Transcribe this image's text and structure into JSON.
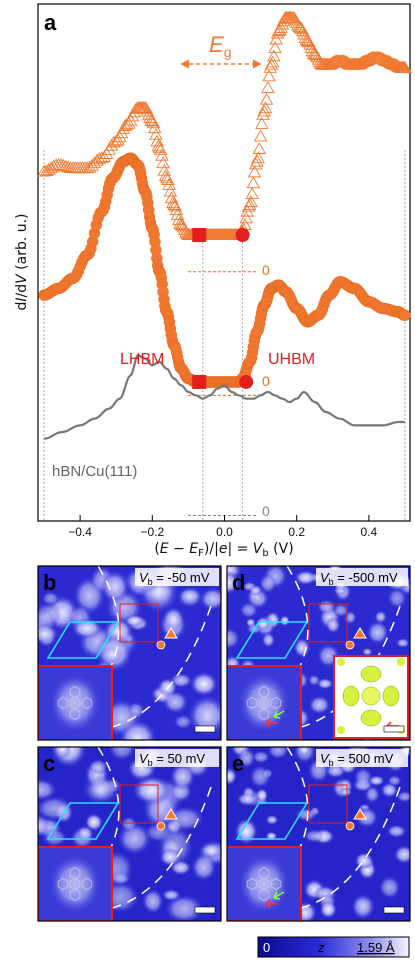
{
  "panel_letters": {
    "a": "a",
    "b": "b",
    "c": "c",
    "d": "d",
    "e": "e"
  },
  "chart_data": {
    "type": "line",
    "xlabel_parts": {
      "open": "(",
      "E": "E",
      "minus": " − ",
      "Ef": "E",
      "Ef_sub": "F",
      "mid": ")/|",
      "e": "e",
      "mid2": "| = ",
      "V": "V",
      "V_sub": "b",
      "unit": " (V)"
    },
    "ylabel_parts": {
      "d": "d",
      "I": "I",
      "slash": "/d",
      "V": "V",
      "rest": " (arb. u.)"
    },
    "xlim": [
      -0.52,
      0.52
    ],
    "x_ticks": [
      -0.4,
      -0.2,
      0.0,
      0.2,
      0.4
    ],
    "x_tick_labels": [
      "−0.4",
      "−0.2",
      "0.0",
      "0.2",
      "0.4"
    ],
    "gap_label": {
      "E": "E",
      "sub": "g"
    },
    "annotations": {
      "lhbm": "LHBM",
      "uhbm": "UHBM",
      "zero": "0"
    },
    "substrate_label": "hBN/Cu(111)",
    "vline_x": [
      -0.5,
      -0.06,
      0.05,
      0.5
    ],
    "series": [
      {
        "marker": "triangle",
        "color": "#f07830",
        "x": [
          -0.5,
          -0.46,
          -0.42,
          -0.38,
          -0.34,
          -0.3,
          -0.27,
          -0.24,
          -0.22,
          -0.2,
          -0.18,
          -0.16,
          -0.14,
          -0.12,
          -0.1,
          -0.08,
          -0.06,
          -0.04,
          -0.02,
          0.0,
          0.02,
          0.04,
          0.05,
          0.07,
          0.09,
          0.11,
          0.13,
          0.15,
          0.17,
          0.19,
          0.21,
          0.23,
          0.25,
          0.27,
          0.29,
          0.31,
          0.33,
          0.35,
          0.37,
          0.39,
          0.41,
          0.43,
          0.45,
          0.47,
          0.49,
          0.5
        ],
        "y": [
          0.52,
          0.54,
          0.53,
          0.53,
          0.56,
          0.61,
          0.66,
          0.71,
          0.71,
          0.67,
          0.59,
          0.5,
          0.42,
          0.36,
          0.33,
          0.33,
          0.33,
          0.33,
          0.33,
          0.33,
          0.33,
          0.33,
          0.34,
          0.42,
          0.55,
          0.7,
          0.84,
          0.94,
          0.98,
          0.98,
          0.95,
          0.91,
          0.87,
          0.84,
          0.84,
          0.85,
          0.85,
          0.84,
          0.84,
          0.85,
          0.86,
          0.86,
          0.85,
          0.84,
          0.83,
          0.83
        ]
      },
      {
        "marker": "circle",
        "color": "#f07830",
        "x": [
          -0.5,
          -0.46,
          -0.42,
          -0.38,
          -0.34,
          -0.31,
          -0.28,
          -0.26,
          -0.24,
          -0.22,
          -0.2,
          -0.18,
          -0.16,
          -0.14,
          -0.12,
          -0.1,
          -0.08,
          -0.06,
          -0.04,
          -0.02,
          0.0,
          0.02,
          0.04,
          0.05,
          0.07,
          0.09,
          0.11,
          0.13,
          0.15,
          0.17,
          0.2,
          0.23,
          0.26,
          0.29,
          0.32,
          0.36,
          0.4,
          0.44,
          0.48,
          0.5
        ],
        "y": [
          0.15,
          0.17,
          0.2,
          0.27,
          0.4,
          0.5,
          0.55,
          0.56,
          0.54,
          0.46,
          0.35,
          0.22,
          0.1,
          0.0,
          -0.07,
          -0.1,
          -0.11,
          -0.11,
          -0.11,
          -0.11,
          -0.11,
          -0.11,
          -0.11,
          -0.1,
          -0.05,
          0.04,
          0.12,
          0.17,
          0.18,
          0.16,
          0.11,
          0.07,
          0.09,
          0.15,
          0.19,
          0.17,
          0.13,
          0.11,
          0.1,
          0.09
        ]
      },
      {
        "marker": "line",
        "color": "#777777",
        "x": [
          -0.5,
          -0.45,
          -0.4,
          -0.36,
          -0.32,
          -0.29,
          -0.26,
          -0.24,
          -0.22,
          -0.2,
          -0.18,
          -0.16,
          -0.14,
          -0.12,
          -0.1,
          -0.08,
          -0.06,
          -0.04,
          -0.02,
          0.0,
          0.02,
          0.04,
          0.06,
          0.08,
          0.1,
          0.12,
          0.14,
          0.16,
          0.18,
          0.2,
          0.22,
          0.25,
          0.28,
          0.32,
          0.36,
          0.4,
          0.44,
          0.48,
          0.5
        ],
        "y": [
          -0.28,
          -0.26,
          -0.24,
          -0.22,
          -0.19,
          -0.16,
          -0.09,
          -0.03,
          -0.04,
          -0.06,
          -0.05,
          -0.07,
          -0.1,
          -0.12,
          -0.14,
          -0.15,
          -0.16,
          -0.15,
          -0.13,
          -0.12,
          -0.14,
          -0.15,
          -0.16,
          -0.16,
          -0.15,
          -0.14,
          -0.15,
          -0.16,
          -0.17,
          -0.16,
          -0.14,
          -0.17,
          -0.2,
          -0.22,
          -0.24,
          -0.24,
          -0.24,
          -0.23,
          -0.23
        ]
      }
    ],
    "onset_markers": [
      {
        "shape": "square",
        "x": -0.07,
        "y": 0.33,
        "color": "#e41e1e"
      },
      {
        "shape": "circle",
        "x": 0.05,
        "y": 0.33,
        "color": "#e41e1e"
      },
      {
        "shape": "square",
        "x": -0.07,
        "y": -0.11,
        "color": "#e41e1e"
      },
      {
        "shape": "circle",
        "x": 0.06,
        "y": -0.11,
        "color": "#e41e1e"
      }
    ],
    "zero_lines": [
      {
        "y": 0.22,
        "color": "#e87020"
      },
      {
        "y": -0.15,
        "color": "#e87020"
      },
      {
        "y": -0.51,
        "color": "#888888"
      }
    ]
  },
  "stm_panels": [
    {
      "letter": "b",
      "vb_value": " = -50 mV"
    },
    {
      "letter": "c",
      "vb_value": " = 50 mV"
    },
    {
      "letter": "d",
      "vb_value": " = -500 mV"
    },
    {
      "letter": "e",
      "vb_value": " = 500 mV"
    }
  ],
  "vb_symbol": {
    "V": "V",
    "sub": "b"
  },
  "colorbar": {
    "min_label": "0",
    "var_label": "z",
    "max_label": "1.59 Å"
  },
  "colors": {
    "orange": "#f07830",
    "red": "#e41e1e",
    "stm_dark": "#1a1ab8",
    "stm_mid": "#3a3ae0",
    "stm_light": "#e8e8ff",
    "cyan": "#29e0ff"
  }
}
